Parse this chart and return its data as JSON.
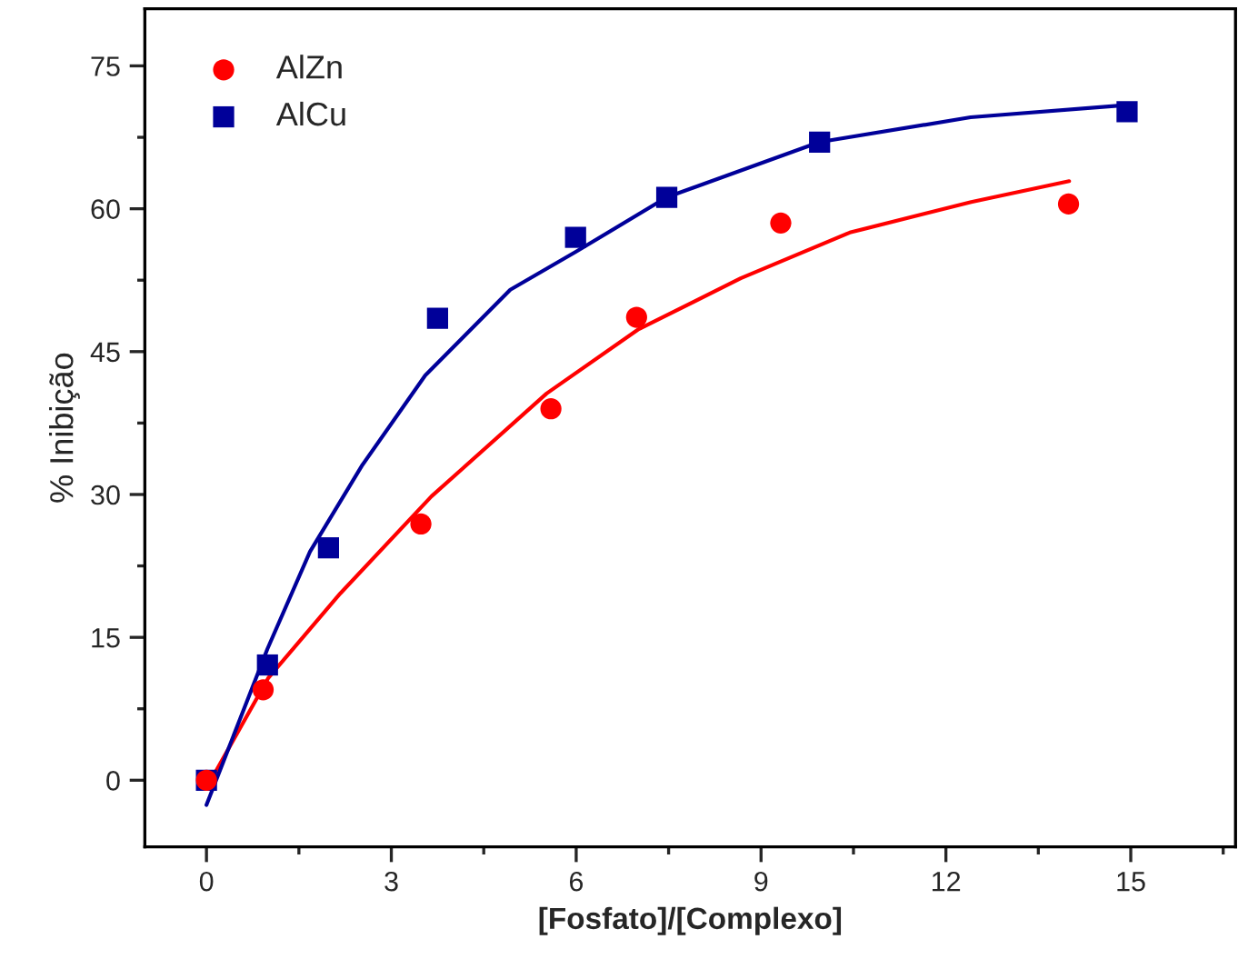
{
  "chart_data": {
    "type": "scatter",
    "xlabel": "[Fosfato]/[Complexo]",
    "ylabel": "% Inibição",
    "xlim": [
      -1,
      16.7
    ],
    "ylim": [
      -7,
      81
    ],
    "xticks": [
      0,
      3,
      6,
      9,
      12,
      15
    ],
    "yticks": [
      0,
      15,
      30,
      45,
      60,
      75
    ],
    "grid": false,
    "legend": "top left",
    "series": [
      {
        "name": "AlZn",
        "color": "#ff0000",
        "marker": "circle",
        "x": [
          0,
          0.92,
          3.48,
          5.59,
          6.98,
          9.32,
          13.99
        ],
        "values": [
          0,
          9.5,
          26.9,
          39.0,
          48.6,
          58.5,
          60.5
        ]
      },
      {
        "name": "AlCu",
        "color": "#000099",
        "marker": "square",
        "x": [
          0,
          0.99,
          1.98,
          3.75,
          5.99,
          7.47,
          9.95,
          14.94
        ],
        "values": [
          0,
          12.1,
          24.4,
          48.5,
          57.0,
          61.2,
          67.0,
          70.2
        ]
      },
      {
        "type": "line",
        "color": "#ff0000",
        "x": [
          0,
          1.0,
          2.17,
          3.65,
          5.52,
          7.0,
          8.67,
          10.44,
          12.41,
          14.0
        ],
        "values": [
          -0.8,
          10.7,
          19.6,
          29.8,
          40.6,
          47.3,
          52.7,
          57.5,
          60.7,
          62.9
        ]
      },
      {
        "type": "line",
        "color": "#000099",
        "x": [
          0,
          0.99,
          1.68,
          2.52,
          3.55,
          4.93,
          6.0,
          7.47,
          9.95,
          12.4,
          14.97
        ],
        "values": [
          -2.6,
          13.8,
          24.0,
          33.0,
          42.5,
          51.5,
          55.5,
          61.2,
          67.0,
          69.6,
          70.9
        ]
      }
    ]
  }
}
